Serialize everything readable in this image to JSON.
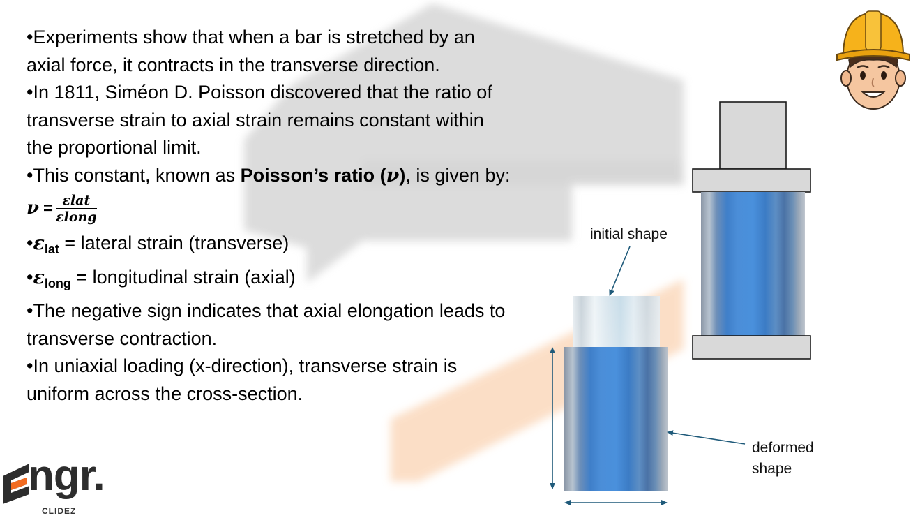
{
  "bullets": {
    "b1_l1": "•Experiments show that when a bar is stretched by an",
    "b1_l2": "axial force, it contracts in the transverse direction.",
    "b2_l1": "•In 1811, Siméon D. Poisson discovered that the ratio of",
    "b2_l2": "transverse strain to axial strain remains constant within",
    "b2_l3": "the proportional limit.",
    "b3_pre": "•This constant, known as ",
    "b3_bold": "Poisson’s ratio (",
    "b3_sym": "ν",
    "b3_bold_close": ")",
    "b3_post": ", is given by:",
    "b6_l1": "•The negative sign indicates that axial elongation leads to",
    "b6_l2": "transverse contraction.",
    "b7_l1": "•In uniaxial loading (x-direction), transverse strain is",
    "b7_l2": "uniform across the cross-section."
  },
  "formula": {
    "lhs": "ν",
    "equals": "=",
    "numerator": "ε",
    "numerator_sub": "lat",
    "denominator": "ε",
    "denominator_sub": "long"
  },
  "definitions": [
    {
      "bullet": "•",
      "symbol": "ε",
      "sub": "lat",
      "text": " = lateral strain (transverse)"
    },
    {
      "bullet": "•",
      "symbol": "ε",
      "sub": "long",
      "text": " = longitudinal strain (axial)"
    }
  ],
  "figure": {
    "label_initial": "initial shape",
    "label_deformed_l1": "deformed",
    "label_deformed_l2": "shape",
    "colors": {
      "bar": "#4a8fd6",
      "initial": "#dbe8ee",
      "fixture": "#d9d9d9",
      "arrow": "#1f5a7a"
    }
  },
  "logo": {
    "main": "ngr.",
    "sub": "CLIDEZ",
    "accent": "#f26b21"
  },
  "icons": {
    "avatar": "engineer-avatar-icon",
    "logo_mark": "logo-e-mark-icon"
  }
}
